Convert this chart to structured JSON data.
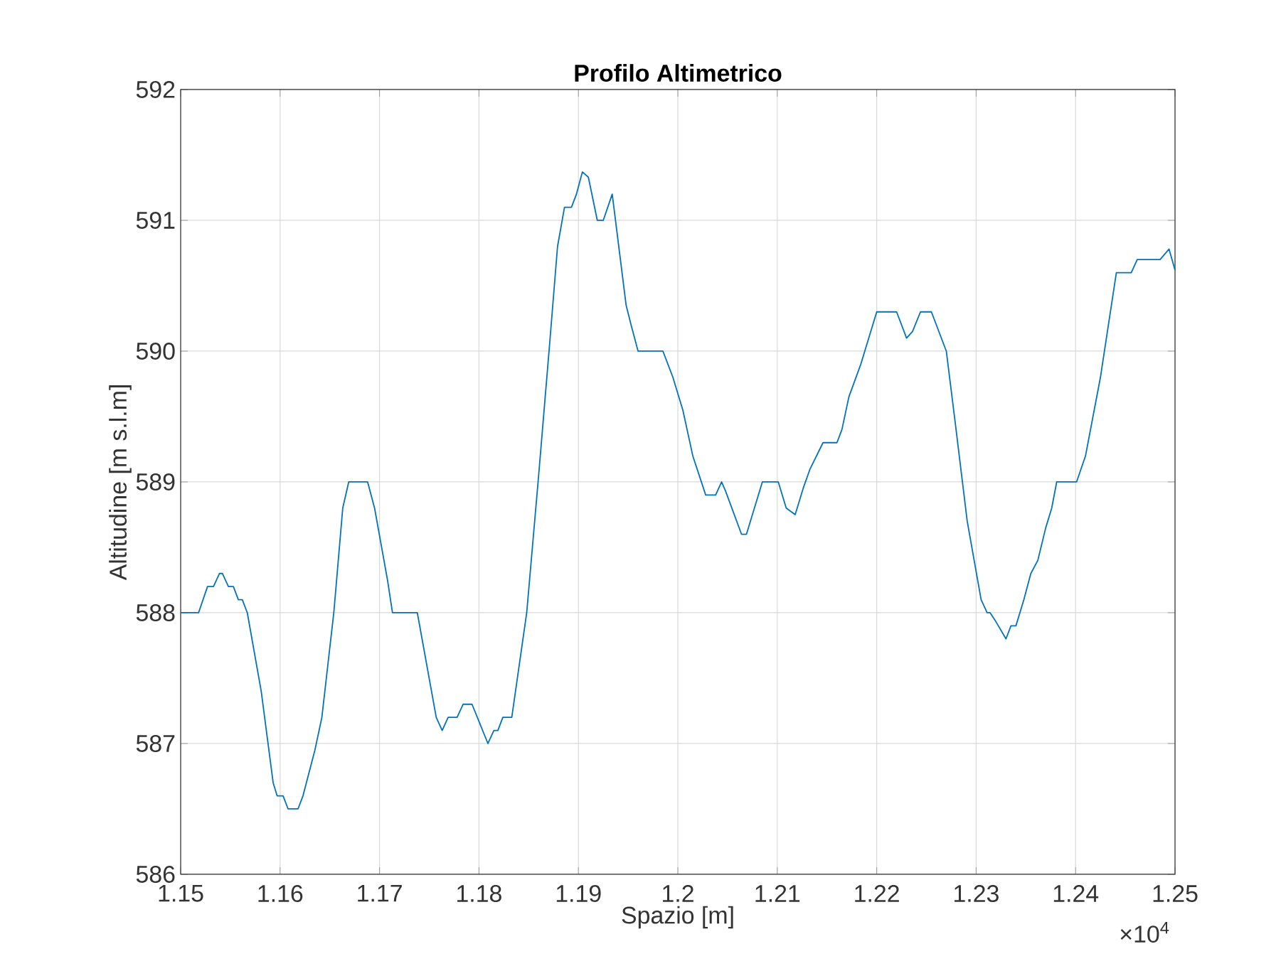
{
  "chart_data": {
    "type": "line",
    "title": "Profilo Altimetrico",
    "xlabel": "Spazio [m]",
    "ylabel": "Altitudine [m s.l.m]",
    "annotations": [
      "×10$^{4}$"
    ],
    "xlim": [
      1.15,
      1.25
    ],
    "ylim": [
      586,
      592
    ],
    "xticks": [
      1.15,
      1.16,
      1.17,
      1.18,
      1.19,
      {
        "value": 1.2,
        "label": "1.2"
      },
      1.21,
      1.22,
      1.23,
      1.24,
      1.25
    ],
    "yticks": [
      586,
      587,
      588,
      589,
      590,
      591,
      592
    ],
    "grid": true,
    "line_style": "solid",
    "series": [
      {
        "color": "#0072bd",
        "x": [
          1.15,
          1.1518,
          1.1527,
          1.1533,
          1.1539,
          1.1542,
          1.1548,
          1.1553,
          1.1558,
          1.1562,
          1.1567,
          1.1581,
          1.1593,
          1.1597,
          1.1603,
          1.1608,
          1.1618,
          1.1623,
          1.1635,
          1.1642,
          1.1654,
          1.1663,
          1.1669,
          1.1688,
          1.1695,
          1.1708,
          1.1713,
          1.1738,
          1.1757,
          1.1763,
          1.1769,
          1.1778,
          1.1784,
          1.1793,
          1.1809,
          1.1815,
          1.1819,
          1.1824,
          1.1833,
          1.1848,
          1.186,
          1.1871,
          1.1879,
          1.1886,
          1.1893,
          1.1898,
          1.1904,
          1.191,
          1.1919,
          1.1925,
          1.1934,
          1.1948,
          1.1953,
          1.196,
          1.1985,
          1.1995,
          1.2005,
          1.2015,
          1.2028,
          1.2038,
          1.2044,
          1.2048,
          1.2064,
          1.2069,
          1.2077,
          1.2085,
          1.2101,
          1.2109,
          1.2118,
          1.2126,
          1.2133,
          1.2146,
          1.215,
          1.216,
          1.2165,
          1.2172,
          1.2184,
          1.22,
          1.222,
          1.223,
          1.2236,
          1.2244,
          1.2255,
          1.227,
          1.2279,
          1.2291,
          1.2305,
          1.2311,
          1.2314,
          1.232,
          1.233,
          1.2335,
          1.234,
          1.2348,
          1.2355,
          1.2362,
          1.237,
          1.2376,
          1.2381,
          1.2401,
          1.241,
          1.2425,
          1.2432,
          1.2441,
          1.2456,
          1.2462,
          1.2485,
          1.2494,
          1.25
        ],
        "values": [
          588.0,
          588.0,
          588.2,
          588.2,
          588.3,
          588.3,
          588.2,
          588.2,
          588.1,
          588.1,
          588.0,
          587.4,
          586.7,
          586.6,
          586.6,
          586.5,
          586.5,
          586.6,
          586.95,
          587.2,
          588.0,
          588.8,
          589.0,
          589.0,
          588.8,
          588.25,
          588.0,
          588.0,
          587.2,
          587.1,
          587.2,
          587.2,
          587.3,
          587.3,
          587.0,
          587.1,
          587.1,
          587.2,
          587.2,
          588.0,
          589.05,
          590.05,
          590.8,
          591.1,
          591.1,
          591.2,
          591.37,
          591.33,
          591.0,
          591.0,
          591.2,
          590.35,
          590.2,
          590.0,
          590.0,
          589.8,
          589.55,
          589.2,
          588.9,
          588.9,
          589.0,
          588.93,
          588.6,
          588.6,
          588.8,
          589.0,
          589.0,
          588.8,
          588.75,
          588.95,
          589.1,
          589.3,
          589.3,
          589.3,
          589.4,
          589.65,
          589.9,
          590.3,
          590.3,
          590.1,
          590.15,
          590.3,
          590.3,
          590.0,
          589.45,
          588.7,
          588.1,
          588.0,
          588.0,
          587.93,
          587.8,
          587.9,
          587.9,
          588.1,
          588.3,
          588.4,
          588.65,
          588.8,
          589.0,
          589.0,
          589.2,
          589.8,
          590.15,
          590.6,
          590.6,
          590.7,
          590.7,
          590.78,
          590.62
        ]
      }
    ]
  }
}
